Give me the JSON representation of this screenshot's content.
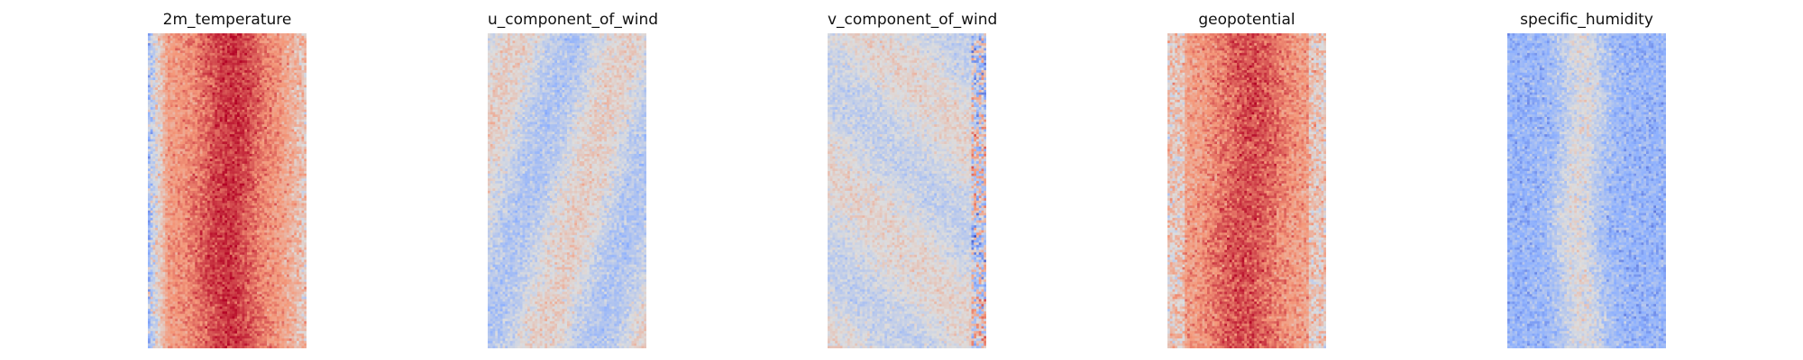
{
  "chart_data": [
    {
      "type": "heatmap",
      "title": "2m_temperature",
      "colormap": "coolwarm",
      "pattern": "warm core band, cooler edges with blue streaks at the far left edge",
      "grid": false,
      "axes": false
    },
    {
      "type": "heatmap",
      "title": "u_component_of_wind",
      "colormap": "coolwarm",
      "pattern": "mostly neutral grey-blue with scattered light blue and light red cells",
      "grid": false,
      "axes": false
    },
    {
      "type": "heatmap",
      "title": "v_component_of_wind",
      "colormap": "coolwarm",
      "pattern": "mostly neutral with sparse red and blue cells, stronger near the right edge",
      "grid": false,
      "axes": false
    },
    {
      "type": "heatmap",
      "title": "geopotential",
      "colormap": "coolwarm",
      "pattern": "warm salmon field with red core band and blue cells at the edges",
      "grid": false,
      "axes": false
    },
    {
      "type": "heatmap",
      "title": "specific_humidity",
      "colormap": "coolwarm",
      "pattern": "blue field with lighter centre and red speckles along the middle",
      "grid": false,
      "axes": false
    }
  ]
}
